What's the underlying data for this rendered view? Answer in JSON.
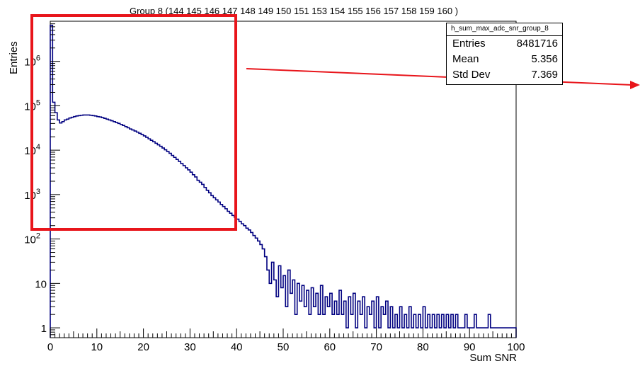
{
  "chart_data": {
    "type": "histogram",
    "title": "Group 8 (144 145 146 147 148 149 150 151 153 154 155 156 157 158 159 160 )",
    "xlabel": "Sum SNR",
    "ylabel": "Entries",
    "xlim": [
      0,
      100
    ],
    "ylim": [
      0.6,
      8000000
    ],
    "y_scale": "log",
    "x_ticks": [
      0,
      10,
      20,
      30,
      40,
      50,
      60,
      70,
      80,
      90,
      100
    ],
    "y_ticks": [
      {
        "value": 1,
        "label": "1"
      },
      {
        "value": 10,
        "label": "10"
      },
      {
        "value": 100,
        "label": "10^2",
        "base": "10",
        "exp": "2"
      },
      {
        "value": 1000,
        "label": "10^3",
        "base": "10",
        "exp": "3"
      },
      {
        "value": 10000,
        "label": "10^4",
        "base": "10",
        "exp": "4"
      },
      {
        "value": 100000,
        "label": "10^5",
        "base": "10",
        "exp": "5"
      },
      {
        "value": 1000000,
        "label": "10^6",
        "base": "10",
        "exp": "6"
      }
    ],
    "bin_width": 0.5,
    "line_color": "#000080",
    "series": [
      {
        "name": "h_sum_max_adc_snr_group_8",
        "bins": [
          [
            0,
            6500000
          ],
          [
            0.5,
            120000
          ],
          [
            1,
            70000
          ],
          [
            1.5,
            48000
          ],
          [
            2,
            41000
          ],
          [
            2.5,
            44000
          ],
          [
            3,
            48000
          ],
          [
            3.5,
            50000
          ],
          [
            4,
            53000
          ],
          [
            4.5,
            55000
          ],
          [
            5,
            57000
          ],
          [
            5.5,
            59000
          ],
          [
            6,
            60000
          ],
          [
            6.5,
            61000
          ],
          [
            7,
            62000
          ],
          [
            7.5,
            62000
          ],
          [
            8,
            62000
          ],
          [
            8.5,
            61000
          ],
          [
            9,
            60000
          ],
          [
            9.5,
            59000
          ],
          [
            10,
            57000
          ],
          [
            10.5,
            56000
          ],
          [
            11,
            54000
          ],
          [
            11.5,
            52000
          ],
          [
            12,
            50000
          ],
          [
            12.5,
            48000
          ],
          [
            13,
            46000
          ],
          [
            13.5,
            44000
          ],
          [
            14,
            42000
          ],
          [
            14.5,
            40000
          ],
          [
            15,
            38000
          ],
          [
            15.5,
            36000
          ],
          [
            16,
            34000
          ],
          [
            16.5,
            32000
          ],
          [
            17,
            30000
          ],
          [
            17.5,
            28500
          ],
          [
            18,
            27000
          ],
          [
            18.5,
            25500
          ],
          [
            19,
            24000
          ],
          [
            19.5,
            22500
          ],
          [
            20,
            21000
          ],
          [
            20.5,
            19500
          ],
          [
            21,
            18000
          ],
          [
            21.5,
            16700
          ],
          [
            22,
            15500
          ],
          [
            22.5,
            14300
          ],
          [
            23,
            13200
          ],
          [
            23.5,
            12200
          ],
          [
            24,
            11200
          ],
          [
            24.5,
            10200
          ],
          [
            25,
            9300
          ],
          [
            25.5,
            8500
          ],
          [
            26,
            7600
          ],
          [
            26.5,
            6900
          ],
          [
            27,
            6200
          ],
          [
            27.5,
            5600
          ],
          [
            28,
            5000
          ],
          [
            28.5,
            4500
          ],
          [
            29,
            4000
          ],
          [
            29.5,
            3600
          ],
          [
            30,
            3200
          ],
          [
            30.5,
            2800
          ],
          [
            31,
            2500
          ],
          [
            31.5,
            2100
          ],
          [
            32,
            1900
          ],
          [
            32.5,
            1700
          ],
          [
            33,
            1450
          ],
          [
            33.5,
            1250
          ],
          [
            34,
            1100
          ],
          [
            34.5,
            950
          ],
          [
            35,
            850
          ],
          [
            35.5,
            760
          ],
          [
            36,
            680
          ],
          [
            36.5,
            600
          ],
          [
            37,
            540
          ],
          [
            37.5,
            480
          ],
          [
            38,
            420
          ],
          [
            38.5,
            380
          ],
          [
            39,
            340
          ],
          [
            39.5,
            310
          ],
          [
            40,
            280
          ],
          [
            40.5,
            250
          ],
          [
            41,
            220
          ],
          [
            41.5,
            200
          ],
          [
            42,
            175
          ],
          [
            42.5,
            160
          ],
          [
            43,
            140
          ],
          [
            43.5,
            120
          ],
          [
            44,
            105
          ],
          [
            44.5,
            90
          ],
          [
            45,
            75
          ],
          [
            45.5,
            60
          ],
          [
            46,
            40
          ],
          [
            46.5,
            20
          ],
          [
            47,
            10
          ],
          [
            47.5,
            30
          ],
          [
            48,
            12
          ],
          [
            48.5,
            5
          ],
          [
            49,
            25
          ],
          [
            49.5,
            8
          ],
          [
            50,
            15
          ],
          [
            50.5,
            3
          ],
          [
            51,
            20
          ],
          [
            51.5,
            6
          ],
          [
            52,
            12
          ],
          [
            52.5,
            2
          ],
          [
            53,
            10
          ],
          [
            53.5,
            4
          ],
          [
            54,
            9
          ],
          [
            54.5,
            3
          ],
          [
            55,
            7
          ],
          [
            55.5,
            2
          ],
          [
            56,
            8
          ],
          [
            56.5,
            3
          ],
          [
            57,
            6
          ],
          [
            57.5,
            2
          ],
          [
            58,
            9
          ],
          [
            58.5,
            2
          ],
          [
            59,
            5
          ],
          [
            59.5,
            3
          ],
          [
            60,
            6
          ],
          [
            60.5,
            2
          ],
          [
            61,
            4
          ],
          [
            61.5,
            2
          ],
          [
            62,
            7
          ],
          [
            62.5,
            2
          ],
          [
            63,
            4
          ],
          [
            63.5,
            1
          ],
          [
            64,
            5
          ],
          [
            64.5,
            2
          ],
          [
            65,
            6
          ],
          [
            65.5,
            1
          ],
          [
            66,
            4
          ],
          [
            66.5,
            2
          ],
          [
            67,
            5
          ],
          [
            67.5,
            1
          ],
          [
            68,
            3
          ],
          [
            68.5,
            2
          ],
          [
            69,
            4
          ],
          [
            69.5,
            1
          ],
          [
            70,
            5
          ],
          [
            70.5,
            1
          ],
          [
            71,
            3
          ],
          [
            71.5,
            2
          ],
          [
            72,
            4
          ],
          [
            72.5,
            1
          ],
          [
            73,
            3
          ],
          [
            73.5,
            1
          ],
          [
            74,
            2
          ],
          [
            74.5,
            1
          ],
          [
            75,
            3
          ],
          [
            75.5,
            1
          ],
          [
            76,
            2
          ],
          [
            76.5,
            1
          ],
          [
            77,
            3
          ],
          [
            77.5,
            1
          ],
          [
            78,
            2
          ],
          [
            78.5,
            1
          ],
          [
            79,
            2
          ],
          [
            79.5,
            1
          ],
          [
            80,
            3
          ],
          [
            80.5,
            1
          ],
          [
            81,
            2
          ],
          [
            81.5,
            1
          ],
          [
            82,
            2
          ],
          [
            82.5,
            1
          ],
          [
            83,
            2
          ],
          [
            83.5,
            1
          ],
          [
            84,
            2
          ],
          [
            84.5,
            1
          ],
          [
            85,
            2
          ],
          [
            85.5,
            1
          ],
          [
            86,
            2
          ],
          [
            86.5,
            1
          ],
          [
            87,
            2
          ],
          [
            87.5,
            1
          ],
          [
            88,
            1
          ],
          [
            88.5,
            1
          ],
          [
            89,
            2
          ],
          [
            89.5,
            1
          ],
          [
            90,
            1
          ],
          [
            90.5,
            1
          ],
          [
            91,
            2
          ],
          [
            91.5,
            1
          ],
          [
            92,
            1
          ],
          [
            92.5,
            1
          ],
          [
            93,
            1
          ],
          [
            93.5,
            1
          ],
          [
            94,
            2
          ],
          [
            94.5,
            1
          ],
          [
            95,
            1
          ],
          [
            95.5,
            1
          ],
          [
            96,
            1
          ],
          [
            96.5,
            1
          ],
          [
            97,
            1
          ],
          [
            97.5,
            1
          ],
          [
            98,
            1
          ],
          [
            98.5,
            1
          ],
          [
            99,
            1
          ],
          [
            99.5,
            1
          ]
        ]
      }
    ],
    "stats_box": {
      "name": "h_sum_max_adc_snr_group_8",
      "rows": [
        {
          "label": "Entries",
          "value": "8481716"
        },
        {
          "label": "Mean",
          "value": "5.356"
        },
        {
          "label": "Std Dev",
          "value": "7.369"
        }
      ]
    },
    "annotation": {
      "type": "highlight-box-with-arrow",
      "color": "#e8151b",
      "x_range": [
        0,
        40
      ],
      "y_min": 150
    }
  }
}
